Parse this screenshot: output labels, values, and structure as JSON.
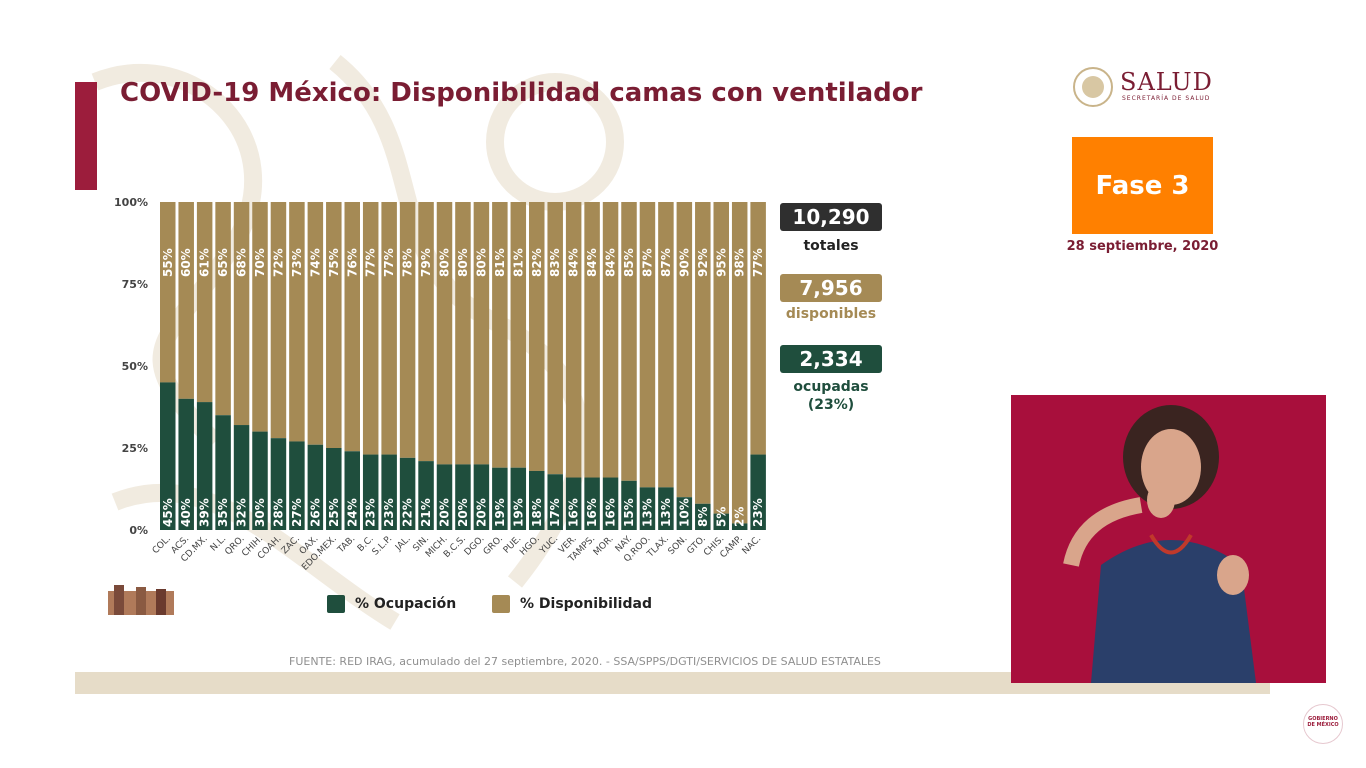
{
  "title": "COVID-19 México: Disponibilidad camas con ventilador",
  "logo": {
    "name": "SALUD",
    "subtitle": "SECRETARÍA DE SALUD"
  },
  "phase": {
    "label": "Fase 3",
    "date": "28 septiembre, 2020"
  },
  "stats": {
    "total": {
      "value": "10,290",
      "label": "totales"
    },
    "available": {
      "value": "7,956",
      "label": "disponibles"
    },
    "occupied": {
      "value": "2,334",
      "label": "ocupadas",
      "percent": "(23%)"
    }
  },
  "legend": {
    "occupied": "% Ocupación",
    "available": "% Disponibilidad"
  },
  "source": "FUENTE: RED IRAG, acumulado del 27 septiembre, 2020. - SSA/SPPS/DGTI/SERVICIOS DE SALUD ESTATALES",
  "corner_logo": "GOBIERNO DE MÉXICO",
  "colors": {
    "occupied": "#1f4e3d",
    "available": "#a58a55",
    "title": "#7a1d33",
    "phase": "#ff8000",
    "interpreter_bg": "#a80f3c"
  },
  "chart_data": {
    "type": "bar",
    "stacked": true,
    "y_ticks": [
      "0%",
      "25%",
      "50%",
      "75%",
      "100%"
    ],
    "ylim": [
      0,
      100
    ],
    "categories": [
      "COL.",
      "ACS.",
      "CD.MX.",
      "N.L.",
      "QRO.",
      "CHIH.",
      "COAH.",
      "ZAC.",
      "OAX.",
      "EDO.MEX.",
      "TAB.",
      "B.C.",
      "S.L.P.",
      "JAL.",
      "SIN.",
      "MICH.",
      "B.C.S.",
      "DGO.",
      "GRO.",
      "PUE.",
      "HGO.",
      "YUC.",
      "VER.",
      "TAMPS.",
      "MOR.",
      "NAY.",
      "Q.ROO.",
      "TLAX.",
      "SON.",
      "GTO.",
      "CHIS.",
      "CAMP.",
      "NAC."
    ],
    "series": [
      {
        "name": "% Ocupación",
        "values": [
          45,
          40,
          39,
          35,
          32,
          30,
          28,
          27,
          26,
          25,
          24,
          23,
          23,
          22,
          21,
          20,
          20,
          20,
          19,
          19,
          18,
          17,
          16,
          16,
          16,
          15,
          13,
          13,
          10,
          8,
          5,
          2,
          23
        ]
      },
      {
        "name": "% Disponibilidad",
        "values": [
          55,
          60,
          61,
          65,
          68,
          70,
          72,
          73,
          74,
          75,
          76,
          77,
          77,
          78,
          79,
          80,
          80,
          80,
          81,
          81,
          82,
          83,
          84,
          84,
          84,
          85,
          87,
          87,
          90,
          92,
          95,
          98,
          77
        ]
      }
    ]
  }
}
